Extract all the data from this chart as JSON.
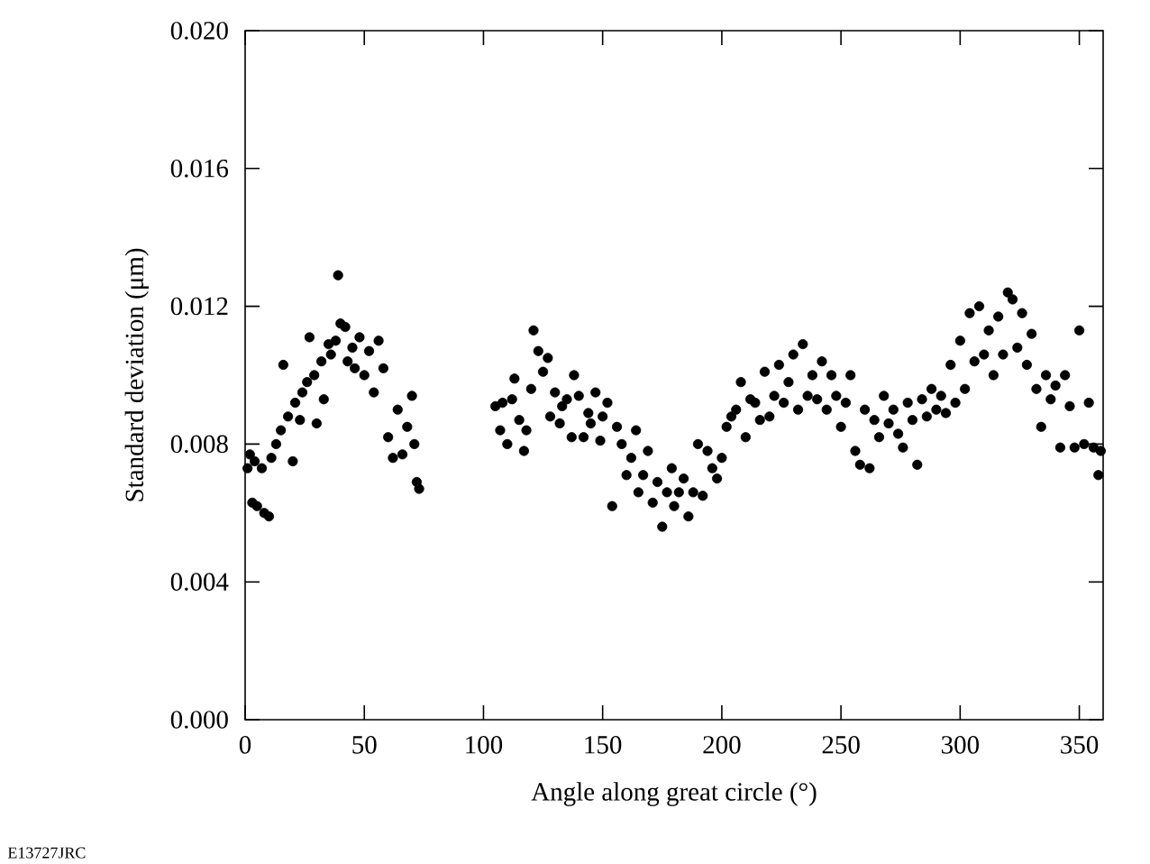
{
  "chart_data": {
    "type": "scatter",
    "xlabel": "Angle along great circle (°)",
    "ylabel": "Standard deviation (μm)",
    "annotations": [
      "E13727JRC"
    ],
    "xlim": [
      0,
      360
    ],
    "xticks": [
      0,
      50,
      100,
      150,
      200,
      250,
      300,
      350
    ],
    "ylim": [
      0,
      0.02
    ],
    "yticks": [
      {
        "value": 0,
        "label": "0.000"
      },
      {
        "value": 0.004,
        "label": "0.004"
      },
      {
        "value": 0.008,
        "label": "0.008"
      },
      {
        "value": 0.012,
        "label": "0.012"
      },
      {
        "value": 0.016,
        "label": "0.016"
      },
      {
        "value": 0.02,
        "label": "0.020"
      }
    ],
    "grid": false,
    "marker": "circle",
    "series": [
      {
        "color": "#000000",
        "x": [
          1,
          2,
          3,
          4,
          5,
          7,
          8,
          10,
          11,
          13,
          15,
          16,
          18,
          20,
          21,
          23,
          24,
          26,
          27,
          29,
          30,
          32,
          33,
          35,
          36,
          38,
          39,
          40,
          42,
          43,
          45,
          46,
          48,
          50,
          52,
          54,
          56,
          58,
          60,
          62,
          64,
          66,
          68,
          70,
          71,
          72,
          73,
          105,
          107,
          108,
          110,
          112,
          113,
          115,
          117,
          118,
          120,
          121,
          123,
          125,
          127,
          128,
          130,
          132,
          133,
          135,
          137,
          138,
          140,
          142,
          144,
          145,
          147,
          149,
          150,
          152,
          154,
          156,
          158,
          160,
          162,
          164,
          165,
          167,
          169,
          171,
          173,
          175,
          177,
          179,
          180,
          182,
          184,
          186,
          188,
          190,
          192,
          194,
          196,
          198,
          200,
          202,
          204,
          206,
          208,
          210,
          212,
          214,
          216,
          218,
          220,
          222,
          224,
          226,
          228,
          230,
          232,
          234,
          236,
          238,
          240,
          242,
          244,
          246,
          248,
          250,
          252,
          254,
          256,
          258,
          260,
          262,
          264,
          266,
          268,
          270,
          272,
          274,
          276,
          278,
          280,
          282,
          284,
          286,
          288,
          290,
          292,
          294,
          296,
          298,
          300,
          302,
          304,
          306,
          308,
          310,
          312,
          314,
          316,
          318,
          320,
          322,
          324,
          326,
          328,
          330,
          332,
          334,
          336,
          338,
          340,
          342,
          344,
          346,
          348,
          350,
          352,
          354,
          356,
          358,
          359
        ],
        "values": [
          0.0073,
          0.0077,
          0.0063,
          0.0075,
          0.0062,
          0.0073,
          0.006,
          0.0059,
          0.0076,
          0.008,
          0.0084,
          0.0103,
          0.0088,
          0.0075,
          0.0092,
          0.0087,
          0.0095,
          0.0098,
          0.0111,
          0.01,
          0.0086,
          0.0104,
          0.0093,
          0.0109,
          0.0106,
          0.011,
          0.0129,
          0.0115,
          0.0114,
          0.0104,
          0.0108,
          0.0102,
          0.0111,
          0.01,
          0.0107,
          0.0095,
          0.011,
          0.0102,
          0.0082,
          0.0076,
          0.009,
          0.0077,
          0.0085,
          0.0094,
          0.008,
          0.0069,
          0.0067,
          0.0091,
          0.0084,
          0.0092,
          0.008,
          0.0093,
          0.0099,
          0.0087,
          0.0078,
          0.0084,
          0.0096,
          0.0113,
          0.0107,
          0.0101,
          0.0105,
          0.0088,
          0.0095,
          0.0086,
          0.0091,
          0.0093,
          0.0082,
          0.01,
          0.0094,
          0.0082,
          0.0089,
          0.0086,
          0.0095,
          0.0081,
          0.0088,
          0.0092,
          0.0062,
          0.0085,
          0.008,
          0.0071,
          0.0076,
          0.0084,
          0.0066,
          0.0071,
          0.0078,
          0.0063,
          0.0069,
          0.0056,
          0.0066,
          0.0073,
          0.0062,
          0.0066,
          0.007,
          0.0059,
          0.0066,
          0.008,
          0.0065,
          0.0078,
          0.0073,
          0.007,
          0.0076,
          0.0085,
          0.0088,
          0.009,
          0.0098,
          0.0082,
          0.0093,
          0.0092,
          0.0087,
          0.0101,
          0.0088,
          0.0094,
          0.0103,
          0.0092,
          0.0098,
          0.0106,
          0.009,
          0.0109,
          0.0094,
          0.01,
          0.0093,
          0.0104,
          0.009,
          0.01,
          0.0094,
          0.0085,
          0.0092,
          0.01,
          0.0078,
          0.0074,
          0.009,
          0.0073,
          0.0087,
          0.0082,
          0.0094,
          0.0086,
          0.009,
          0.0083,
          0.0079,
          0.0092,
          0.0087,
          0.0074,
          0.0093,
          0.0088,
          0.0096,
          0.009,
          0.0094,
          0.0089,
          0.0103,
          0.0092,
          0.011,
          0.0096,
          0.0118,
          0.0104,
          0.012,
          0.0106,
          0.0113,
          0.01,
          0.0117,
          0.0106,
          0.0124,
          0.0122,
          0.0108,
          0.0118,
          0.0103,
          0.0112,
          0.0096,
          0.0085,
          0.01,
          0.0093,
          0.0097,
          0.0079,
          0.01,
          0.0091,
          0.0079,
          0.0113,
          0.008,
          0.0092,
          0.0079,
          0.0071,
          0.0078
        ]
      }
    ]
  }
}
